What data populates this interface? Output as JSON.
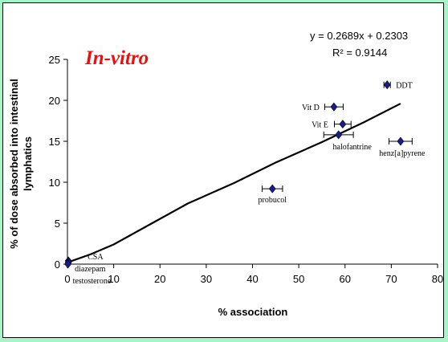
{
  "chart_data": {
    "type": "scatter",
    "title": "In-vitro",
    "xlabel": "% association",
    "ylabel_lines": [
      "% of dose absorbed into intestinal",
      "lymphatics"
    ],
    "xlim": [
      0,
      80
    ],
    "ylim": [
      0,
      25
    ],
    "xticks": [
      "0",
      "10",
      "20",
      "30",
      "40",
      "50",
      "60",
      "70",
      "80"
    ],
    "yticks": [
      "0",
      "5",
      "10",
      "15",
      "20",
      "25"
    ],
    "equation": "y = 0.2689x + 0.2303",
    "r_squared": "R² = 0.9144",
    "trendline": [
      {
        "x": 0,
        "y": 0.2303
      },
      {
        "x": 72,
        "y": 19.59
      }
    ],
    "curve": [
      [
        0,
        0.2
      ],
      [
        5,
        1.2
      ],
      [
        10,
        2.4
      ],
      [
        18,
        4.9
      ],
      [
        26,
        7.4
      ],
      [
        36,
        9.9
      ],
      [
        45,
        12.4
      ],
      [
        55,
        14.9
      ],
      [
        64,
        17.3
      ],
      [
        72,
        19.6
      ]
    ],
    "marker_color": "#1b1b8c",
    "points": [
      {
        "label": "CSA",
        "x": 0.2,
        "y": 0.4,
        "xerr": 0
      },
      {
        "label": "diazepam",
        "x": 0.2,
        "y": 0.2,
        "xerr": 0
      },
      {
        "label": "testosterone",
        "x": 0.1,
        "y": 0.0,
        "xerr": 0
      },
      {
        "label": "probucol",
        "x": 44.3,
        "y": 9.2,
        "xerr": 2.2
      },
      {
        "label": "halofantrine",
        "x": 58.6,
        "y": 15.8,
        "xerr": 3.2
      },
      {
        "label": "Vit E",
        "x": 59.5,
        "y": 17.1,
        "xerr": 1.8
      },
      {
        "label": "Vit D",
        "x": 57.6,
        "y": 19.2,
        "xerr": 2.0
      },
      {
        "label": "DDT",
        "x": 69.1,
        "y": 21.9,
        "xerr": 0.7
      },
      {
        "label": "henz[a]pyrene",
        "x": 72.0,
        "y": 15.0,
        "xerr": 2.5
      }
    ]
  }
}
